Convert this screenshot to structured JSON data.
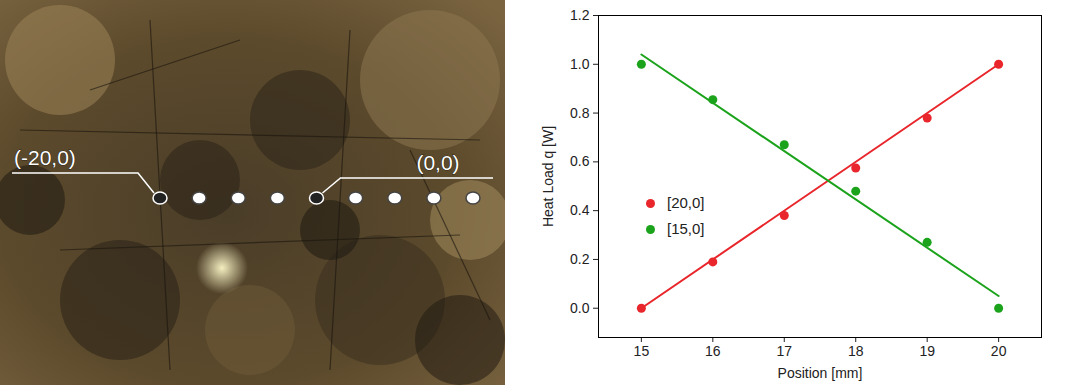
{
  "image": {
    "points": [
      [
        -20,
        0
      ],
      [
        -15,
        0
      ],
      [
        -10,
        0
      ],
      [
        -5,
        0
      ],
      [
        0,
        0
      ],
      [
        5,
        0
      ],
      [
        10,
        0
      ],
      [
        15,
        0
      ],
      [
        20,
        0
      ]
    ],
    "labels": [
      {
        "text": "(-20,0)",
        "point": [
          -20,
          0
        ]
      },
      {
        "text": "(0,0)",
        "point": [
          0,
          0
        ]
      }
    ]
  },
  "chart_data": {
    "type": "scatter",
    "x_label": "Position [mm]",
    "y_label": "Heat Load q [W]",
    "x": [
      15,
      16,
      17,
      18,
      19,
      20
    ],
    "series": [
      {
        "name": "[20,0]",
        "color": "#e8262b",
        "marker": "circle",
        "values": [
          0.0,
          0.19,
          0.38,
          0.575,
          0.78,
          1.0
        ],
        "fit": {
          "x": [
            15,
            20
          ],
          "values": [
            0.0,
            1.0
          ]
        }
      },
      {
        "name": "[15,0]",
        "color": "#1ca31c",
        "marker": "circle",
        "values": [
          1.0,
          0.855,
          0.67,
          0.48,
          0.27,
          0.0
        ],
        "fit": {
          "x": [
            15,
            20
          ],
          "values": [
            1.04,
            0.05
          ]
        }
      }
    ],
    "xlim": [
      14.4,
      20.6
    ],
    "xticks": [
      15,
      16,
      17,
      18,
      19,
      20
    ],
    "ylim": [
      -0.12,
      1.2
    ],
    "yticks": [
      {
        "value": 0,
        "label": "0.0"
      },
      {
        "value": 0.2,
        "label": "0.2"
      },
      {
        "value": 0.4,
        "label": "0.4"
      },
      {
        "value": 0.6,
        "label": "0.6"
      },
      {
        "value": 0.8,
        "label": "0.8"
      },
      {
        "value": 1.0,
        "label": "1.0"
      },
      {
        "value": 1.2,
        "label": "1.2"
      }
    ],
    "legend": "left",
    "grid": false
  }
}
